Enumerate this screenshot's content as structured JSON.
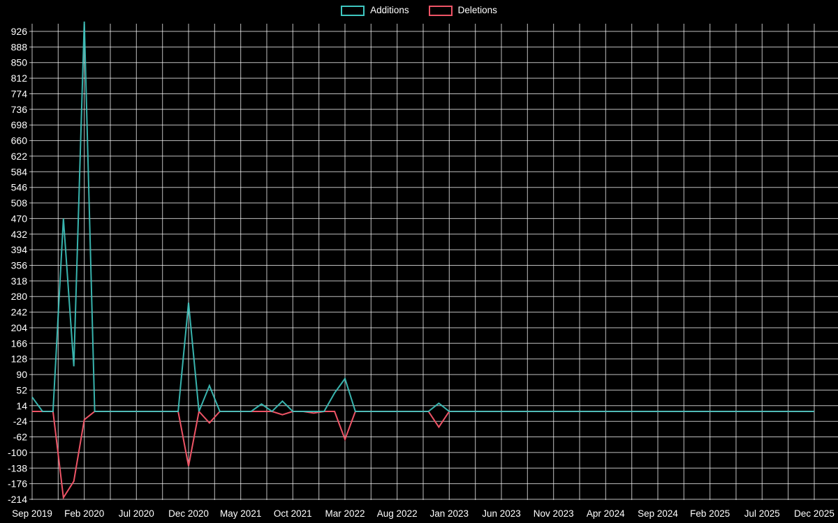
{
  "page": {
    "background": "#000000",
    "text_color": "#ffffff"
  },
  "legend": {
    "items": [
      {
        "label": "Additions",
        "color": "#3ec6c0"
      },
      {
        "label": "Deletions",
        "color": "#ee5466"
      }
    ]
  },
  "chart_data": {
    "type": "line",
    "title": "",
    "xlabel": "",
    "ylabel": "",
    "x_axis": {
      "unit": "month",
      "start": "Sep 2019",
      "end": "Dec 2025",
      "months_total": 76,
      "tick_every_months": 5,
      "tick_labels": [
        "Sep 2019",
        "Feb 2020",
        "Jul 2020",
        "Dec 2020",
        "May 2021",
        "Oct 2021",
        "Mar 2022",
        "Aug 2022",
        "Jan 2023",
        "Jun 2023",
        "Nov 2023",
        "Apr 2024",
        "Sep 2024",
        "Feb 2025",
        "Jul 2025",
        "Dec 2025"
      ]
    },
    "y_axis": {
      "min": -214,
      "max": 926,
      "step": 38,
      "ticks": [
        926,
        888,
        850,
        812,
        774,
        736,
        698,
        660,
        622,
        584,
        546,
        508,
        470,
        432,
        394,
        356,
        318,
        280,
        242,
        204,
        166,
        128,
        90,
        52,
        14,
        -24,
        -62,
        -100,
        -138,
        -176,
        -214
      ]
    },
    "grid": {
      "on": true,
      "color": "rgba(255,255,255,0.75)",
      "vertical_every_months": 2.5
    },
    "legend_position": "top-center",
    "series": [
      {
        "name": "Additions",
        "color": "#3ec6c0",
        "values": [
          35,
          0,
          0,
          470,
          110,
          950,
          0,
          0,
          0,
          0,
          0,
          0,
          0,
          0,
          0,
          265,
          0,
          63,
          0,
          0,
          0,
          0,
          18,
          0,
          25,
          0,
          0,
          0,
          0,
          45,
          80,
          0,
          0,
          0,
          0,
          0,
          0,
          0,
          0,
          20,
          0,
          0,
          0,
          0,
          0,
          0,
          0,
          0,
          0,
          0,
          0,
          0,
          0,
          0,
          0,
          0,
          0,
          0,
          0,
          0,
          0,
          0,
          0,
          0,
          0,
          0,
          0,
          0,
          0,
          0,
          0,
          0,
          0,
          0,
          0,
          0
        ]
      },
      {
        "name": "Deletions",
        "color": "#ee5466",
        "values": [
          0,
          0,
          0,
          -210,
          -170,
          -20,
          0,
          0,
          0,
          0,
          0,
          0,
          0,
          0,
          0,
          -133,
          0,
          -28,
          0,
          0,
          0,
          0,
          0,
          0,
          -8,
          0,
          0,
          -4,
          0,
          0,
          -68,
          0,
          0,
          0,
          0,
          0,
          0,
          0,
          0,
          -38,
          0,
          0,
          0,
          0,
          0,
          0,
          0,
          0,
          0,
          0,
          0,
          0,
          0,
          0,
          0,
          0,
          0,
          0,
          0,
          0,
          0,
          0,
          0,
          0,
          0,
          0,
          0,
          0,
          0,
          0,
          0,
          0,
          0,
          0,
          0,
          0
        ]
      }
    ]
  }
}
